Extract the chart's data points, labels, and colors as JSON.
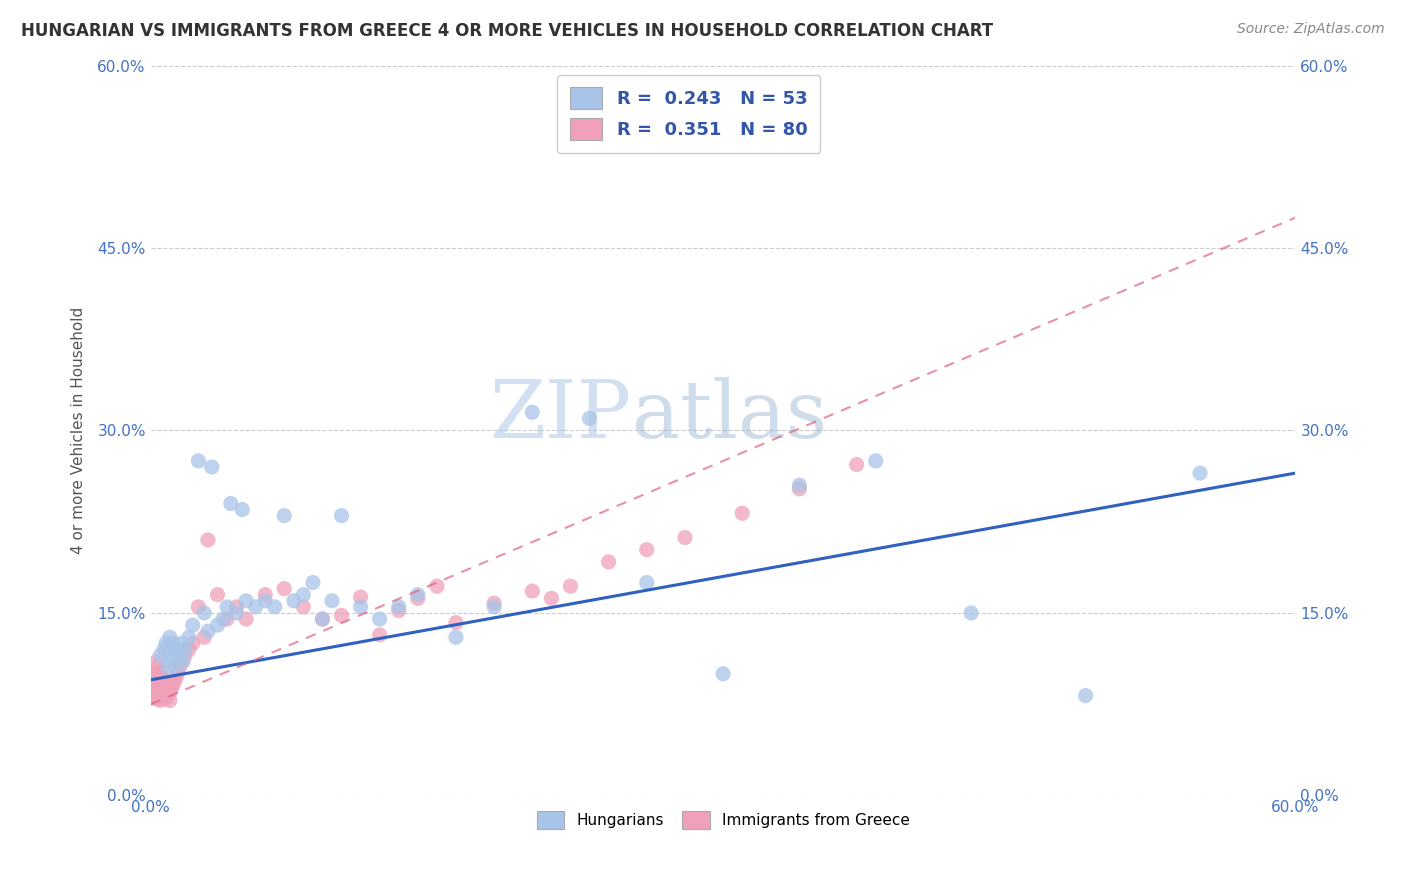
{
  "title": "HUNGARIAN VS IMMIGRANTS FROM GREECE 4 OR MORE VEHICLES IN HOUSEHOLD CORRELATION CHART",
  "source": "Source: ZipAtlas.com",
  "ylabel": "4 or more Vehicles in Household",
  "xlim": [
    0.0,
    0.6
  ],
  "ylim": [
    0.0,
    0.6
  ],
  "ytick_labels": [
    "0.0%",
    "15.0%",
    "30.0%",
    "45.0%",
    "60.0%"
  ],
  "ytick_values": [
    0.0,
    0.15,
    0.3,
    0.45,
    0.6
  ],
  "legend_bottom": [
    "Hungarians",
    "Immigrants from Greece"
  ],
  "blue_R": 0.243,
  "blue_N": 53,
  "pink_R": 0.351,
  "pink_N": 80,
  "blue_color": "#a8c4e8",
  "pink_color": "#f0a0b8",
  "blue_line_color": "#3060c0",
  "pink_line_color": "#e06080",
  "watermark_zip": "ZIP",
  "watermark_atlas": "atlas",
  "background_color": "#ffffff",
  "blue_x": [
    0.005,
    0.007,
    0.008,
    0.009,
    0.01,
    0.01,
    0.01,
    0.011,
    0.012,
    0.013,
    0.014,
    0.015,
    0.016,
    0.017,
    0.018,
    0.02,
    0.022,
    0.025,
    0.028,
    0.03,
    0.032,
    0.035,
    0.038,
    0.04,
    0.042,
    0.045,
    0.048,
    0.05,
    0.055,
    0.06,
    0.065,
    0.07,
    0.075,
    0.08,
    0.085,
    0.09,
    0.095,
    0.1,
    0.11,
    0.12,
    0.13,
    0.14,
    0.16,
    0.18,
    0.2,
    0.23,
    0.26,
    0.3,
    0.34,
    0.38,
    0.43,
    0.49,
    0.55
  ],
  "blue_y": [
    0.115,
    0.12,
    0.125,
    0.105,
    0.11,
    0.13,
    0.115,
    0.12,
    0.125,
    0.105,
    0.12,
    0.115,
    0.125,
    0.11,
    0.12,
    0.13,
    0.14,
    0.275,
    0.15,
    0.135,
    0.27,
    0.14,
    0.145,
    0.155,
    0.24,
    0.15,
    0.235,
    0.16,
    0.155,
    0.16,
    0.155,
    0.23,
    0.16,
    0.165,
    0.175,
    0.145,
    0.16,
    0.23,
    0.155,
    0.145,
    0.155,
    0.165,
    0.13,
    0.155,
    0.315,
    0.31,
    0.175,
    0.1,
    0.255,
    0.275,
    0.15,
    0.082,
    0.265
  ],
  "pink_x": [
    0.001,
    0.001,
    0.001,
    0.001,
    0.001,
    0.002,
    0.002,
    0.002,
    0.002,
    0.002,
    0.003,
    0.003,
    0.003,
    0.003,
    0.003,
    0.003,
    0.003,
    0.004,
    0.004,
    0.004,
    0.004,
    0.005,
    0.005,
    0.005,
    0.005,
    0.005,
    0.005,
    0.005,
    0.006,
    0.006,
    0.006,
    0.006,
    0.007,
    0.007,
    0.007,
    0.008,
    0.008,
    0.008,
    0.009,
    0.009,
    0.01,
    0.01,
    0.01,
    0.011,
    0.012,
    0.013,
    0.014,
    0.015,
    0.016,
    0.018,
    0.02,
    0.022,
    0.025,
    0.028,
    0.03,
    0.035,
    0.04,
    0.045,
    0.05,
    0.06,
    0.07,
    0.08,
    0.09,
    0.1,
    0.11,
    0.12,
    0.13,
    0.14,
    0.15,
    0.16,
    0.18,
    0.2,
    0.21,
    0.22,
    0.24,
    0.26,
    0.28,
    0.31,
    0.34,
    0.37
  ],
  "pink_y": [
    0.08,
    0.085,
    0.09,
    0.095,
    0.1,
    0.08,
    0.085,
    0.09,
    0.095,
    0.1,
    0.08,
    0.085,
    0.09,
    0.095,
    0.1,
    0.105,
    0.11,
    0.08,
    0.085,
    0.09,
    0.095,
    0.078,
    0.082,
    0.086,
    0.09,
    0.094,
    0.098,
    0.102,
    0.08,
    0.085,
    0.09,
    0.095,
    0.082,
    0.087,
    0.092,
    0.08,
    0.088,
    0.095,
    0.083,
    0.09,
    0.078,
    0.085,
    0.092,
    0.088,
    0.092,
    0.096,
    0.1,
    0.105,
    0.11,
    0.115,
    0.12,
    0.125,
    0.155,
    0.13,
    0.21,
    0.165,
    0.145,
    0.155,
    0.145,
    0.165,
    0.17,
    0.155,
    0.145,
    0.148,
    0.163,
    0.132,
    0.152,
    0.162,
    0.172,
    0.142,
    0.158,
    0.168,
    0.162,
    0.172,
    0.192,
    0.202,
    0.212,
    0.232,
    0.252,
    0.272
  ],
  "blue_line_x": [
    0.0,
    0.6
  ],
  "blue_line_y": [
    0.095,
    0.265
  ],
  "pink_line_x": [
    0.0,
    0.6
  ],
  "pink_line_y": [
    0.075,
    0.475
  ]
}
